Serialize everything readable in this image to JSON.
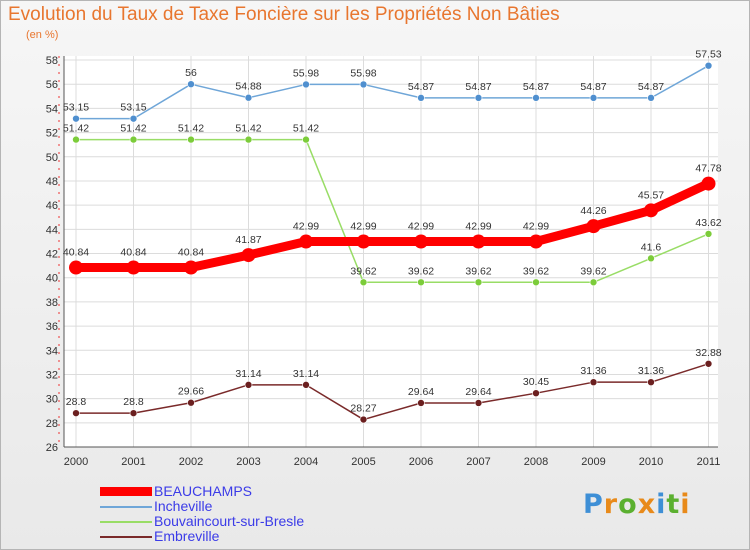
{
  "chart_data": {
    "type": "line",
    "title": "Evolution du Taux de Taxe Foncière sur les Propriétés Non Bâties",
    "ylabel": "(en %)",
    "xlabel": "",
    "categories": [
      "2000",
      "2001",
      "2002",
      "2003",
      "2004",
      "2005",
      "2006",
      "2007",
      "2008",
      "2009",
      "2010",
      "2011"
    ],
    "ylim": [
      26,
      58
    ],
    "yticks": [
      26,
      28,
      30,
      32,
      34,
      36,
      38,
      40,
      42,
      44,
      46,
      48,
      50,
      52,
      54,
      56,
      58
    ],
    "grid": true,
    "legend_position": "bottom-left",
    "series": [
      {
        "name": "BEAUCHAMPS",
        "color": "#ff0000",
        "values": [
          40.84,
          40.84,
          40.84,
          41.87,
          42.99,
          42.99,
          42.99,
          42.99,
          42.99,
          44.26,
          45.57,
          47.78
        ],
        "labels": [
          "40.84",
          "40.84",
          "40.84",
          "41.87",
          "42.99",
          "42.99",
          "42.99",
          "42.99",
          "42.99",
          "44.26",
          "45.57",
          "47.78"
        ]
      },
      {
        "name": "Incheville",
        "color": "#6fa6d8",
        "values": [
          53.15,
          53.15,
          56,
          54.88,
          55.98,
          55.98,
          54.87,
          54.87,
          54.87,
          54.87,
          54.87,
          57.53
        ],
        "labels": [
          "53.15",
          "53.15",
          "56",
          "54.88",
          "55.98",
          "55.98",
          "54.87",
          "54.87",
          "54.87",
          "54.87",
          "54.87",
          "57.53"
        ]
      },
      {
        "name": "Bouvaincourt-sur-Bresle",
        "color": "#99dd66",
        "values": [
          51.42,
          51.42,
          51.42,
          51.42,
          51.42,
          39.62,
          39.62,
          39.62,
          39.62,
          39.62,
          41.6,
          43.62
        ],
        "labels": [
          "51.42",
          "51.42",
          "51.42",
          "51.42",
          "51.42",
          "39.62",
          "39.62",
          "39.62",
          "39.62",
          "39.62",
          "41.6",
          "43.62"
        ]
      },
      {
        "name": "Embreville",
        "color": "#7a2a2a",
        "values": [
          28.8,
          28.8,
          29.66,
          31.14,
          31.14,
          28.27,
          29.64,
          29.64,
          30.45,
          31.36,
          31.36,
          32.88
        ],
        "labels": [
          "28.8",
          "28.8",
          "29.66",
          "31.14",
          "31.14",
          "28.27",
          "29.64",
          "29.64",
          "30.45",
          "31.36",
          "31.36",
          "32.88"
        ]
      }
    ]
  },
  "logo": {
    "letters": [
      "P",
      "r",
      "o",
      "x",
      "i",
      "t",
      "i"
    ],
    "colors": [
      "#3e8fd6",
      "#e88a1a",
      "#5bb030",
      "#e88a1a",
      "#3e8fd6",
      "#5bb030",
      "#e88a1a"
    ]
  }
}
